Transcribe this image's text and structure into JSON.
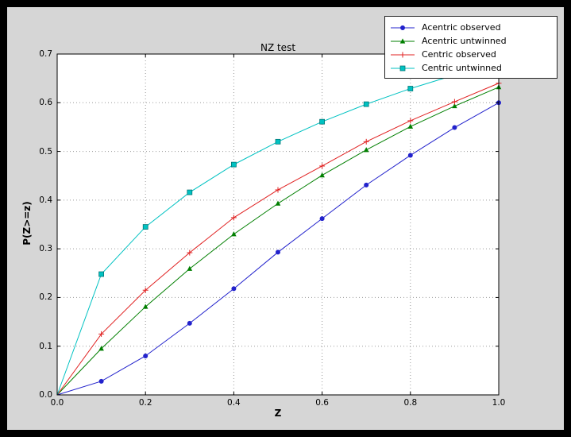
{
  "window": {
    "background": "#000000",
    "figure_background": "#d6d6d6",
    "axes_background": "#ffffff"
  },
  "chart_data": {
    "type": "line",
    "title": "NZ test",
    "xlabel": "Z",
    "ylabel": "P(Z>=z)",
    "xlim": [
      0.0,
      1.0
    ],
    "ylim": [
      0.0,
      0.7
    ],
    "grid": true,
    "legend_position": "upper right",
    "xticks": {
      "values": [
        0.0,
        0.2,
        0.4,
        0.6,
        0.8,
        1.0
      ],
      "labels": [
        "0.0",
        "0.2",
        "0.4",
        "0.6",
        "0.8",
        "1.0"
      ]
    },
    "yticks": {
      "values": [
        0.0,
        0.1,
        0.2,
        0.3,
        0.4,
        0.5,
        0.6,
        0.7
      ],
      "labels": [
        "0.0",
        "0.1",
        "0.2",
        "0.3",
        "0.4",
        "0.5",
        "0.6",
        "0.7"
      ]
    },
    "x": [
      0.0,
      0.1,
      0.2,
      0.3,
      0.4,
      0.5,
      0.6,
      0.7,
      0.8,
      0.9,
      1.0
    ],
    "series": [
      {
        "name": "Acentric observed",
        "color": "#2222cc",
        "marker": "circle",
        "values": [
          0.0,
          0.028,
          0.08,
          0.147,
          0.218,
          0.293,
          0.362,
          0.431,
          0.492,
          0.549,
          0.6
        ]
      },
      {
        "name": "Acentric untwinned",
        "color": "#007f00",
        "marker": "triangle",
        "values": [
          0.0,
          0.095,
          0.181,
          0.259,
          0.33,
          0.393,
          0.451,
          0.503,
          0.551,
          0.593,
          0.632
        ]
      },
      {
        "name": "Centric observed",
        "color": "#e02020",
        "marker": "plus",
        "values": [
          0.0,
          0.125,
          0.215,
          0.292,
          0.364,
          0.421,
          0.47,
          0.52,
          0.563,
          0.602,
          0.64
        ]
      },
      {
        "name": "Centric untwinned",
        "color": "#00c2c2",
        "marker": "square",
        "values": [
          0.0,
          0.248,
          0.345,
          0.416,
          0.473,
          0.52,
          0.561,
          0.597,
          0.629,
          0.657,
          0.683
        ]
      }
    ]
  }
}
